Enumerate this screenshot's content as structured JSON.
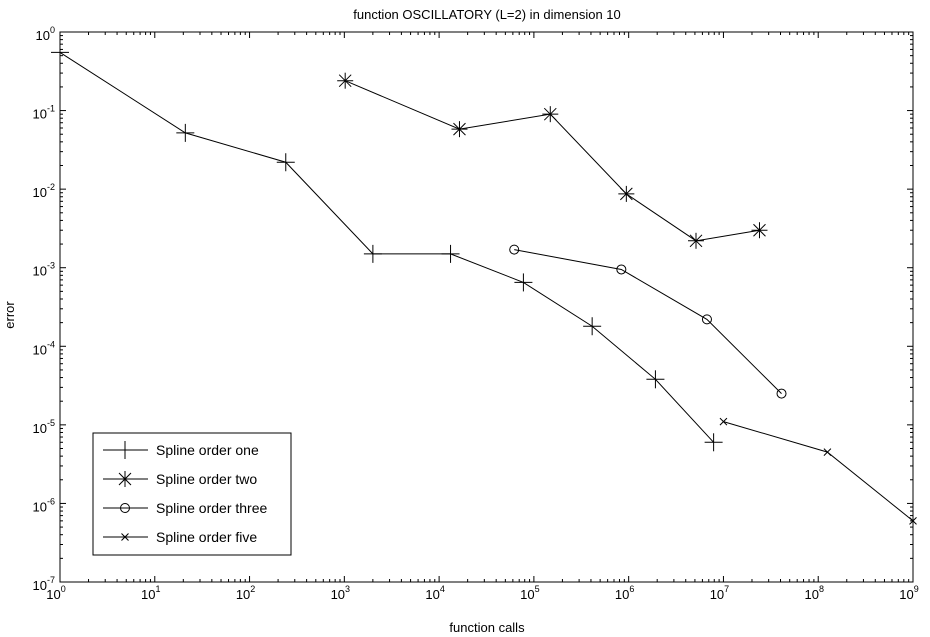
{
  "chart_data": {
    "type": "line",
    "title": "function OSCILLATORY (L=2) in dimension 10",
    "xlabel": "function calls",
    "ylabel": "error",
    "x_scale": "log",
    "y_scale": "log",
    "xlim": [
      1,
      1000000000
    ],
    "ylim": [
      1e-07,
      1
    ],
    "x_ticks": [
      {
        "base": "10",
        "exp": "0",
        "value": 1
      },
      {
        "base": "10",
        "exp": "1",
        "value": 10
      },
      {
        "base": "10",
        "exp": "2",
        "value": 100
      },
      {
        "base": "10",
        "exp": "3",
        "value": 1000
      },
      {
        "base": "10",
        "exp": "4",
        "value": 10000
      },
      {
        "base": "10",
        "exp": "5",
        "value": 100000
      },
      {
        "base": "10",
        "exp": "6",
        "value": 1000000
      },
      {
        "base": "10",
        "exp": "7",
        "value": 10000000
      },
      {
        "base": "10",
        "exp": "8",
        "value": 100000000
      },
      {
        "base": "10",
        "exp": "9",
        "value": 1000000000
      }
    ],
    "y_ticks": [
      {
        "base": "10",
        "exp": "0",
        "value": 1
      },
      {
        "base": "10",
        "exp": "-1",
        "value": 0.1
      },
      {
        "base": "10",
        "exp": "-2",
        "value": 0.01
      },
      {
        "base": "10",
        "exp": "-3",
        "value": 0.001
      },
      {
        "base": "10",
        "exp": "-4",
        "value": 0.0001
      },
      {
        "base": "10",
        "exp": "-5",
        "value": 1e-05
      },
      {
        "base": "10",
        "exp": "-6",
        "value": 1e-06
      },
      {
        "base": "10",
        "exp": "-7",
        "value": 1e-07
      }
    ],
    "grid": false,
    "legend_position": "bottom-left",
    "series": [
      {
        "name": "Spline order one",
        "marker": "plus",
        "points": [
          [
            1,
            0.55
          ],
          [
            21,
            0.052
          ],
          [
            241,
            0.022
          ],
          [
            2001,
            0.0015
          ],
          [
            13201,
            0.0015
          ],
          [
            77505,
            0.00065
          ],
          [
            411845,
            0.00018
          ],
          [
            1915521,
            3.8e-05
          ],
          [
            7875105,
            6e-06
          ]
        ]
      },
      {
        "name": "Spline order two",
        "marker": "asterisk",
        "points": [
          [
            1021,
            0.24
          ],
          [
            16401,
            0.058
          ],
          [
            148941,
            0.09
          ],
          [
            945001,
            0.0087
          ],
          [
            5135201,
            0.0022
          ],
          [
            24000000,
            0.003
          ]
        ]
      },
      {
        "name": "Spline order three",
        "marker": "circle",
        "points": [
          [
            62001,
            0.0017
          ],
          [
            837000,
            0.00095
          ],
          [
            6700000,
            0.00022
          ],
          [
            41000000,
            2.5e-05
          ]
        ]
      },
      {
        "name": "Spline order five",
        "marker": "x",
        "points": [
          [
            10000000,
            1.1e-05
          ],
          [
            125000000,
            4.5e-06
          ],
          [
            1000000000,
            6e-07
          ]
        ]
      }
    ]
  }
}
